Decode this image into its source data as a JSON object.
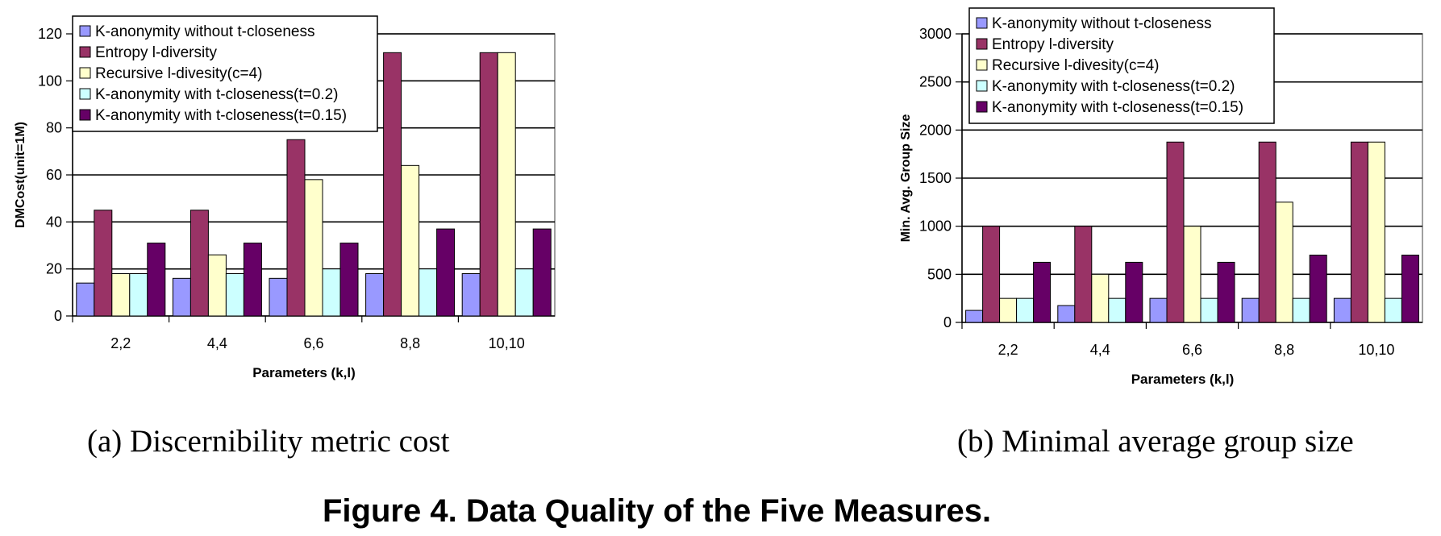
{
  "colors": {
    "series": [
      "#9999ff",
      "#993366",
      "#ffffcc",
      "#ccffff",
      "#660066"
    ],
    "grid": "#000000",
    "axis": "#808080"
  },
  "chart_data": [
    {
      "type": "bar",
      "caption": "(a) Discernibility metric cost",
      "categories": [
        "2,2",
        "4,4",
        "6,6",
        "8,8",
        "10,10"
      ],
      "xlabel": "Parameters (k,l)",
      "ylabel": "DMCost(unit=1M)",
      "ylim": [
        0,
        120
      ],
      "yticks": [
        "0",
        "20",
        "40",
        "60",
        "80",
        "100",
        "120"
      ],
      "grid": true,
      "legend": "top-left",
      "series": [
        {
          "name": "K-anonymity without t-closeness",
          "values": [
            14,
            16,
            16,
            18,
            18
          ]
        },
        {
          "name": "Entropy l-diversity",
          "values": [
            45,
            45,
            75,
            112,
            112
          ]
        },
        {
          "name": "Recursive l-divesity(c=4)",
          "values": [
            18,
            26,
            58,
            64,
            112
          ]
        },
        {
          "name": "K-anonymity with t-closeness(t=0.2)",
          "values": [
            18,
            18,
            20,
            20,
            20
          ]
        },
        {
          "name": "K-anonymity with t-closeness(t=0.15)",
          "values": [
            31,
            31,
            31,
            37,
            37
          ]
        }
      ]
    },
    {
      "type": "bar",
      "caption": "(b) Minimal average group size",
      "categories": [
        "2,2",
        "4,4",
        "6,6",
        "8,8",
        "10,10"
      ],
      "xlabel": "Parameters (k,l)",
      "ylabel": "Min. Avg. Group Size",
      "ylim": [
        0,
        3000
      ],
      "yticks": [
        "0",
        "500",
        "1000",
        "1500",
        "2000",
        "2500",
        "3000"
      ],
      "grid": true,
      "legend": "top-left",
      "series": [
        {
          "name": "K-anonymity without t-closeness",
          "values": [
            125,
            175,
            250,
            250,
            250
          ]
        },
        {
          "name": "Entropy l-diversity",
          "values": [
            1000,
            1000,
            1875,
            1875,
            1875
          ]
        },
        {
          "name": "Recursive l-divesity(c=4)",
          "values": [
            250,
            500,
            1000,
            1250,
            1875
          ]
        },
        {
          "name": "K-anonymity with t-closeness(t=0.2)",
          "values": [
            250,
            250,
            250,
            250,
            250
          ]
        },
        {
          "name": "K-anonymity with t-closeness(t=0.15)",
          "values": [
            625,
            625,
            625,
            700,
            700
          ]
        }
      ]
    }
  ],
  "figure_caption": "Figure 4. Data Quality of the Five Measures."
}
